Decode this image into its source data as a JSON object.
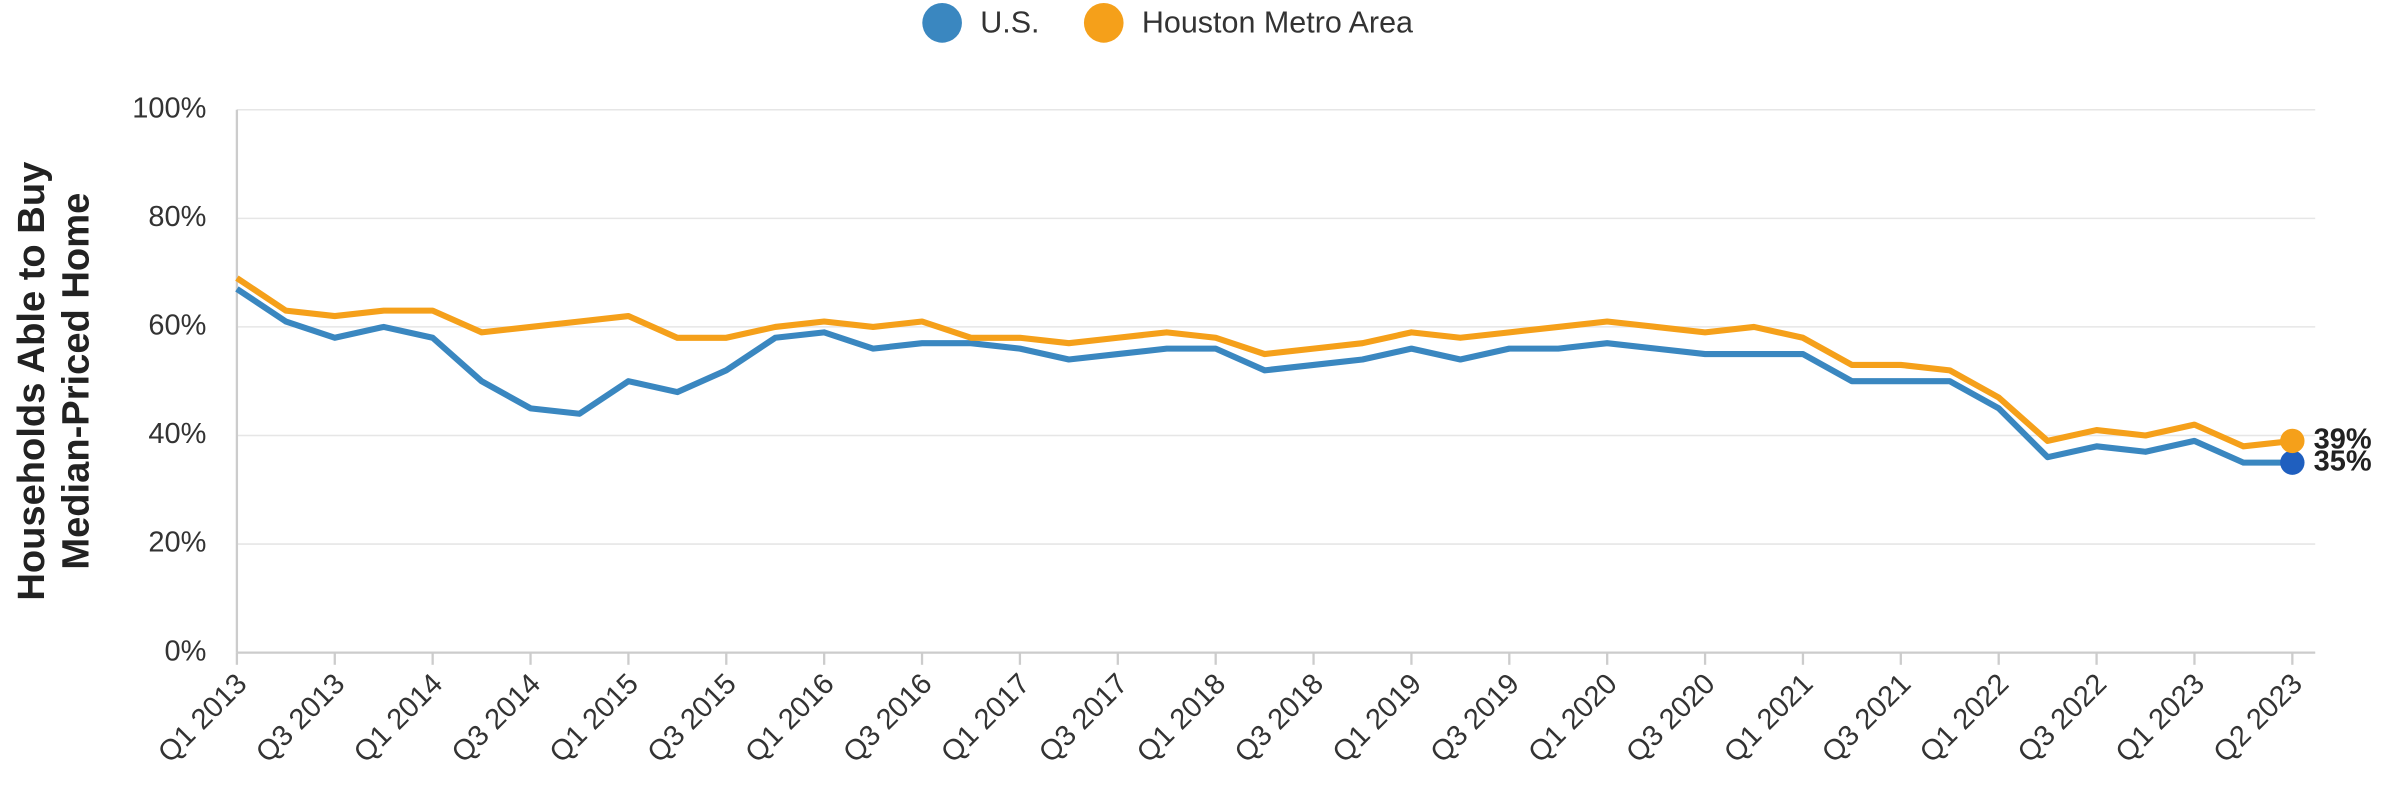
{
  "chart_data": {
    "type": "line",
    "y_label": [
      "Households Able to Buy",
      "Median-Priced Home"
    ],
    "categories": [
      "Q1 2013",
      null,
      "Q3 2013",
      null,
      "Q1 2014",
      null,
      "Q3 2014",
      null,
      "Q1 2015",
      null,
      "Q3 2015",
      null,
      "Q1 2016",
      null,
      "Q3 2016",
      null,
      "Q1 2017",
      null,
      "Q3 2017",
      null,
      "Q1 2018",
      null,
      "Q3 2018",
      null,
      "Q1 2019",
      null,
      "Q3 2019",
      null,
      "Q1 2020",
      null,
      "Q3 2020",
      null,
      "Q1 2021",
      null,
      "Q3 2021",
      null,
      "Q1 2022",
      null,
      "Q3 2022",
      null,
      "Q1 2023",
      null,
      "Q2 2023"
    ],
    "series": [
      {
        "name": "U.S.",
        "color": "#3a87c0",
        "end_color": "#1f5fbf",
        "values": [
          67,
          61,
          58,
          60,
          58,
          50,
          45,
          44,
          50,
          48,
          52,
          58,
          59,
          56,
          57,
          57,
          56,
          54,
          55,
          56,
          56,
          52,
          53,
          54,
          56,
          54,
          56,
          56,
          57,
          56,
          55,
          55,
          55,
          50,
          50,
          50,
          45,
          36,
          38,
          37,
          39,
          35,
          35
        ],
        "value_labels": [
          null,
          null,
          null,
          null,
          null,
          null,
          null,
          null,
          null,
          null,
          null,
          null,
          null,
          null,
          null,
          null,
          null,
          null,
          null,
          null,
          null,
          null,
          null,
          null,
          null,
          null,
          null,
          null,
          null,
          null,
          null,
          null,
          null,
          null,
          null,
          null,
          null,
          null,
          null,
          null,
          null,
          null,
          "35%"
        ]
      },
      {
        "name": "Houston Metro Area",
        "color": "#f5a01a",
        "end_color": "#f5a01a",
        "values": [
          69,
          63,
          62,
          63,
          63,
          59,
          60,
          61,
          62,
          58,
          58,
          60,
          61,
          60,
          61,
          58,
          58,
          57,
          58,
          59,
          58,
          55,
          56,
          57,
          59,
          58,
          59,
          60,
          61,
          60,
          59,
          60,
          58,
          53,
          53,
          52,
          47,
          39,
          41,
          40,
          42,
          38,
          39
        ],
        "value_labels": [
          null,
          null,
          null,
          null,
          null,
          null,
          null,
          null,
          null,
          null,
          null,
          null,
          null,
          null,
          null,
          null,
          null,
          null,
          null,
          null,
          null,
          null,
          null,
          null,
          null,
          null,
          null,
          null,
          null,
          null,
          null,
          null,
          null,
          null,
          null,
          null,
          null,
          null,
          null,
          null,
          null,
          null,
          "39%"
        ]
      }
    ],
    "ylim": [
      0,
      100
    ],
    "yticks": [
      {
        "value": 0,
        "label": "0%"
      },
      {
        "value": 20,
        "label": "20%"
      },
      {
        "value": 40,
        "label": "40%"
      },
      {
        "value": 60,
        "label": "60%"
      },
      {
        "value": 80,
        "label": "80%"
      },
      {
        "value": 100,
        "label": "100%"
      }
    ],
    "grid": true,
    "legend": "top"
  }
}
